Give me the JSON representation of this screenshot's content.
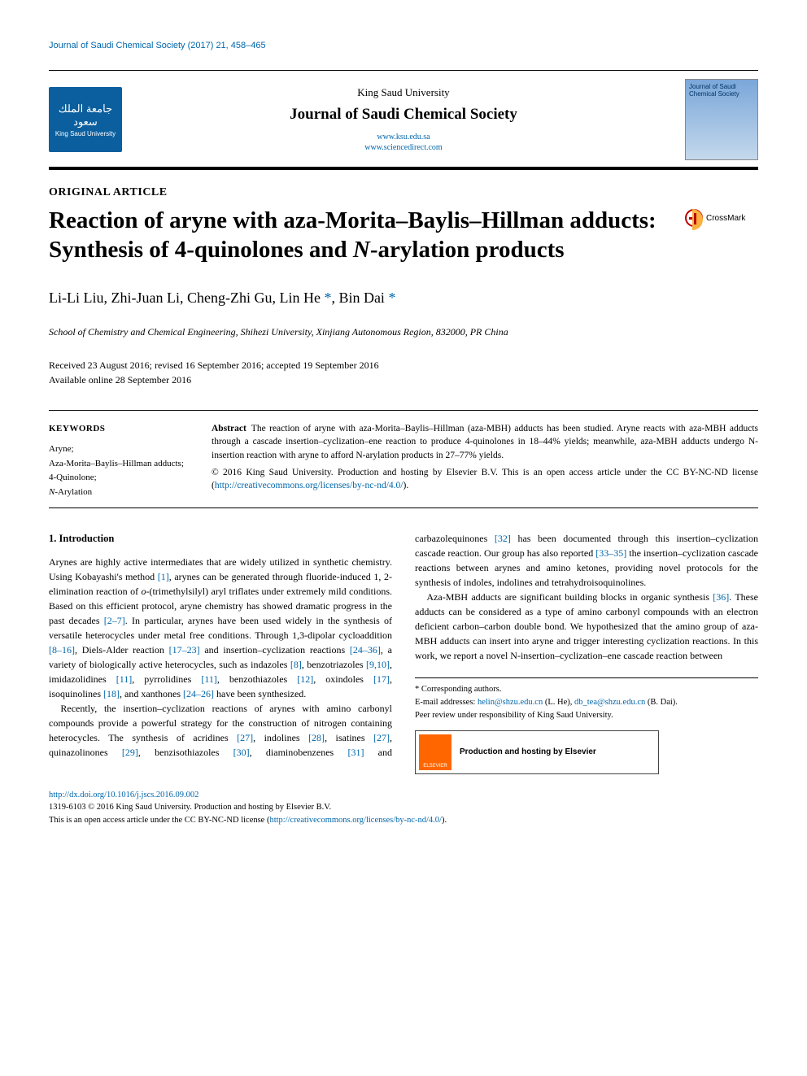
{
  "running_head": "Journal of Saudi Chemical Society (2017) 21, 458–465",
  "masthead": {
    "logo_left_arabic": "جامعة الملك سعود",
    "logo_left_en": "King Saud University",
    "university": "King Saud University",
    "journal": "Journal of Saudi Chemical Society",
    "link1": "www.ksu.edu.sa",
    "link2": "www.sciencedirect.com",
    "logo_right_text": "Journal of Saudi Chemical Society"
  },
  "article_type": "ORIGINAL ARTICLE",
  "title_part1": "Reaction of aryne with aza-Morita–Baylis–Hillman adducts: Synthesis of 4-quinolones and ",
  "title_ital": "N",
  "title_part2": "-arylation products",
  "crossmark_label": "CrossMark",
  "authors_html": {
    "a1": "Li-Li Liu, Zhi-Juan Li, Cheng-Zhi Gu, Lin He ",
    "star": "*",
    "a2": ", Bin Dai ",
    "star2": "*"
  },
  "affiliation": "School of Chemistry and Chemical Engineering, Shihezi University, Xinjiang Autonomous Region, 832000, PR China",
  "dates_line1": "Received 23 August 2016; revised 16 September 2016; accepted 19 September 2016",
  "dates_line2": "Available online 28 September 2016",
  "keywords_head": "KEYWORDS",
  "keywords": [
    "Aryne;",
    "Aza-Morita–Baylis–Hillman adducts;",
    "4-Quinolone;",
    "N-Arylation"
  ],
  "abstract_label": "Abstract",
  "abstract_body": "The reaction of aryne with aza-Morita–Baylis–Hillman (aza-MBH) adducts has been studied. Aryne reacts with aza-MBH adducts through a cascade insertion–cyclization–ene reaction to produce 4-quinolones in 18–44% yields; meanwhile, aza-MBH adducts undergo N-insertion reaction with aryne to afford N-arylation products in 27–77% yields.",
  "abstract_copyright": "© 2016 King Saud University. Production and hosting by Elsevier B.V. This is an open access article under the CC BY-NC-ND license (",
  "abstract_cc_url": "http://creativecommons.org/licenses/by-nc-nd/4.0/",
  "abstract_cc_tail": ").",
  "intro_head": "1. Introduction",
  "intro_p1_a": "Arynes are highly active intermediates that are widely utilized in synthetic chemistry. Using Kobayashi's method ",
  "intro_ref1": "[1]",
  "intro_p1_b": ", arynes can be generated through fluoride-induced 1, 2-elimination reaction of ",
  "intro_p1_ital": "o",
  "intro_p1_c": "-(trimethylsilyl) aryl triflates under extremely mild conditions. Based on this efficient protocol, aryne chemistry has showed dramatic progress in the past decades ",
  "intro_ref2": "[2–7]",
  "intro_p1_d": ". In particular, arynes have been used widely in the synthesis of versatile heterocycles under metal free conditions. Through 1,3-dipolar cycloaddition ",
  "intro_ref3": "[8–16]",
  "intro_p1_e": ", Diels-Alder reaction ",
  "intro_ref4": "[17–23]",
  "intro_p1_f": " and insertion–cyclization reactions ",
  "intro_ref5": "[24–36]",
  "intro_p1_g": ", a variety of biologically active heterocycles, such as indazoles ",
  "intro_ref6": "[8]",
  "intro_p1_h": ", benzotriazoles ",
  "intro_ref7": "[9,10]",
  "intro_p1_i": ", imidazolidines ",
  "intro_ref8": "[11]",
  "intro_p1_j": ", pyrrolidines ",
  "intro_ref9": "[11]",
  "intro_p1_k": ", benzothiazoles ",
  "intro_ref10": "[12]",
  "intro_p1_l": ", oxindoles ",
  "intro_ref11": "[17]",
  "intro_p1_m": ", isoquinolines ",
  "intro_ref12": "[18]",
  "intro_p1_n": ", and xanthones ",
  "intro_ref13": "[24–26]",
  "intro_p1_o": " have been synthesized.",
  "intro_p2_a": "Recently, the insertion–cyclization reactions of arynes with amino carbonyl compounds provide a powerful strategy for the construction of nitrogen containing heterocycles. The synthesis of acridines ",
  "intro_ref14": "[27]",
  "intro_p2_b": ", indolines ",
  "intro_ref15": "[28]",
  "intro_p2_c": ", isatines ",
  "intro_ref16": "[27]",
  "intro_p2_d": ", quinazolinones ",
  "intro_ref17": "[29]",
  "intro_p2_e": ", benzisothiazoles ",
  "intro_ref18": "[30]",
  "intro_p2_f": ", diaminobenzenes ",
  "intro_ref19": "[31]",
  "intro_p2_g": " and carbazolequinones ",
  "intro_ref20": "[32]",
  "intro_p2_h": " has been documented through this insertion–cyclization cascade reaction. Our group has also reported ",
  "intro_ref21": "[33–35]",
  "intro_p2_i": " the insertion–cyclization cascade reactions between arynes and amino ketones, providing novel protocols for the synthesis of indoles, indolines and tetrahydroisoquinolines.",
  "intro_p3_a": "Aza-MBH adducts are significant building blocks in organic synthesis ",
  "intro_ref22": "[36]",
  "intro_p3_b": ". These adducts can be considered as a type of amino carbonyl compounds with an electron deficient carbon–carbon double bond. We hypothesized that the amino group of aza-MBH adducts can insert into aryne and trigger interesting cyclization reactions. In this work, we report a novel N-insertion–cyclization–ene cascade reaction between",
  "footnote_corr": "* Corresponding authors.",
  "footnote_email_label": "E-mail addresses: ",
  "footnote_email1": "helin@shzu.edu.cn",
  "footnote_email1_who": " (L. He), ",
  "footnote_email2": "db_tea@shzu.edu.cn",
  "footnote_email2_who": " (B. Dai).",
  "footnote_peer": "Peer review under responsibility of King Saud University.",
  "prodhost_logo": "ELSEVIER",
  "prodhost_text": "Production and hosting by Elsevier",
  "footer_doi": "http://dx.doi.org/10.1016/j.jscs.2016.09.002",
  "footer_line2": "1319-6103 © 2016 King Saud University. Production and hosting by Elsevier B.V.",
  "footer_line3a": "This is an open access article under the CC BY-NC-ND license (",
  "footer_cc": "http://creativecommons.org/licenses/by-nc-nd/4.0/",
  "footer_line3b": ")."
}
